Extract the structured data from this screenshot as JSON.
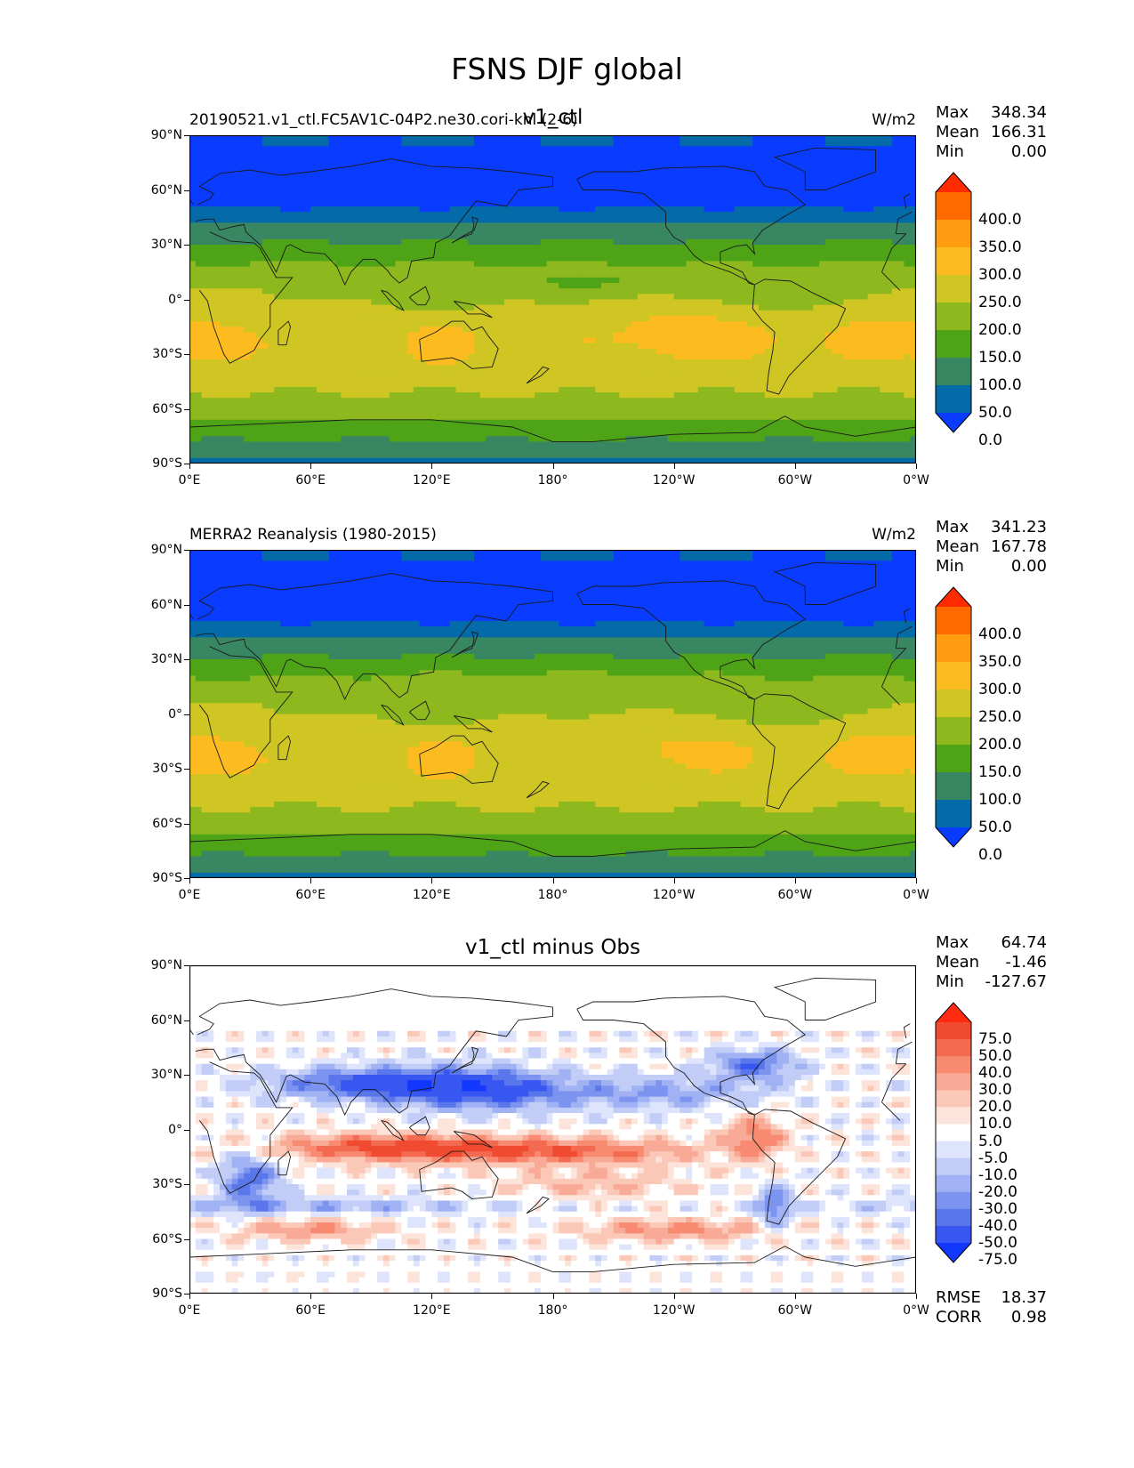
{
  "figure": {
    "title": "FSNS DJF global"
  },
  "chart_data": [
    {
      "type": "heatmap",
      "title": "v1_ctl",
      "left_title": "20190521.v1_ctl.FC5AV1C-04P2.ne30.cori-knl (2-6)",
      "units": "W/m2",
      "stats": {
        "max_label": "Max",
        "max": "348.34",
        "mean_label": "Mean",
        "mean": "166.31",
        "min_label": "Min",
        "min": "0.00"
      },
      "xticks": [
        "0°E",
        "60°E",
        "120°E",
        "180°",
        "120°W",
        "60°W",
        "0°W"
      ],
      "yticks": [
        "90°N",
        "60°N",
        "30°N",
        "0°",
        "30°S",
        "60°S",
        "90°S"
      ],
      "colorbar": {
        "levels": [
          "400.0",
          "350.0",
          "300.0",
          "250.0",
          "200.0",
          "150.0",
          "100.0",
          "50.0",
          "0.0"
        ],
        "colors": [
          "#ff2a00",
          "#ff6a00",
          "#ff9c10",
          "#fcbc20",
          "#cfc624",
          "#8db81e",
          "#4ea416",
          "#398762",
          "#046aa8",
          "#0a3cff"
        ]
      }
    },
    {
      "type": "heatmap",
      "title": "",
      "left_title": "MERRA2 Reanalysis (1980-2015)",
      "units": "W/m2",
      "stats": {
        "max_label": "Max",
        "max": "341.23",
        "mean_label": "Mean",
        "mean": "167.78",
        "min_label": "Min",
        "min": "0.00"
      },
      "xticks": [
        "0°E",
        "60°E",
        "120°E",
        "180°",
        "120°W",
        "60°W",
        "0°W"
      ],
      "yticks": [
        "90°N",
        "60°N",
        "30°N",
        "0°",
        "30°S",
        "60°S",
        "90°S"
      ],
      "colorbar": {
        "levels": [
          "400.0",
          "350.0",
          "300.0",
          "250.0",
          "200.0",
          "150.0",
          "100.0",
          "50.0",
          "0.0"
        ],
        "colors": [
          "#ff2a00",
          "#ff6a00",
          "#ff9c10",
          "#fcbc20",
          "#cfc624",
          "#8db81e",
          "#4ea416",
          "#398762",
          "#046aa8",
          "#0a3cff"
        ]
      }
    },
    {
      "type": "heatmap",
      "title": "v1_ctl minus Obs",
      "left_title": "",
      "units": "",
      "stats": {
        "max_label": "Max",
        "max": "64.74",
        "mean_label": "Mean",
        "mean": "-1.46",
        "min_label": "Min",
        "min": "-127.67"
      },
      "metrics": {
        "rmse_label": "RMSE",
        "rmse": "18.37",
        "corr_label": "CORR",
        "corr": "0.98"
      },
      "xticks": [
        "0°E",
        "60°E",
        "120°E",
        "180°",
        "120°W",
        "60°W",
        "0°W"
      ],
      "yticks": [
        "90°N",
        "60°N",
        "30°N",
        "0°",
        "30°S",
        "60°S",
        "90°S"
      ],
      "colorbar": {
        "levels": [
          "75.0",
          "50.0",
          "40.0",
          "30.0",
          "20.0",
          "10.0",
          "5.0",
          "-5.0",
          "-10.0",
          "-20.0",
          "-30.0",
          "-40.0",
          "-50.0",
          "-75.0"
        ],
        "colors": [
          "#ff2a10",
          "#f04a30",
          "#f46a50",
          "#f78a70",
          "#f9aa96",
          "#fbc8b8",
          "#fde4da",
          "#ffffff",
          "#dde4fb",
          "#c2cdf7",
          "#a0b2f3",
          "#7c94ef",
          "#5a76eb",
          "#3856f0",
          "#1238ff"
        ]
      }
    }
  ]
}
